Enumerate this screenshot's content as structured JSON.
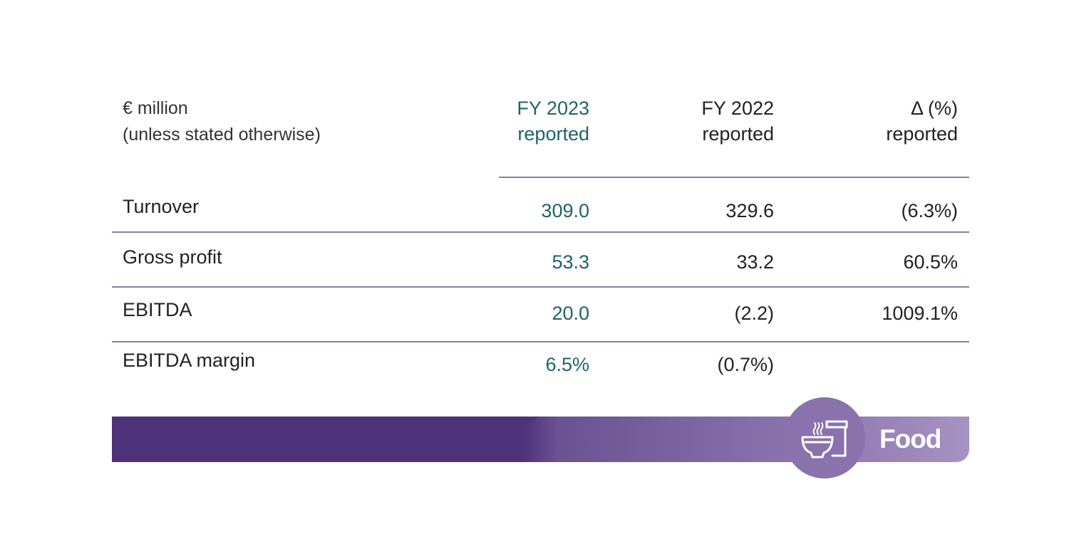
{
  "header": {
    "unit_line1": "€ million",
    "unit_line2": "(unless stated otherwise)",
    "columns": [
      {
        "line1": "FY 2023",
        "line2": "reported"
      },
      {
        "line1": "FY 2022",
        "line2": "reported"
      },
      {
        "line1": "Δ (%)",
        "line2": "reported"
      }
    ]
  },
  "rows": [
    {
      "label": "Turnover",
      "fy2023": "309.0",
      "fy2022": "329.6",
      "delta": "(6.3%)"
    },
    {
      "label": "Gross profit",
      "fy2023": "53.3",
      "fy2022": "33.2",
      "delta": "60.5%"
    },
    {
      "label": "EBITDA",
      "fy2023": "20.0",
      "fy2022": "(2.2)",
      "delta": "1009.1%"
    },
    {
      "label": "EBITDA margin",
      "fy2023": "6.5%",
      "fy2022": "(0.7%)",
      "delta": ""
    }
  ],
  "banner": {
    "label": "Food",
    "icon": "food-bowl-icon"
  },
  "colors": {
    "accent_teal": "#1f6467",
    "purple_dark": "#4f337a",
    "purple_light": "#a692c2",
    "divider": "#8a7fa0"
  }
}
